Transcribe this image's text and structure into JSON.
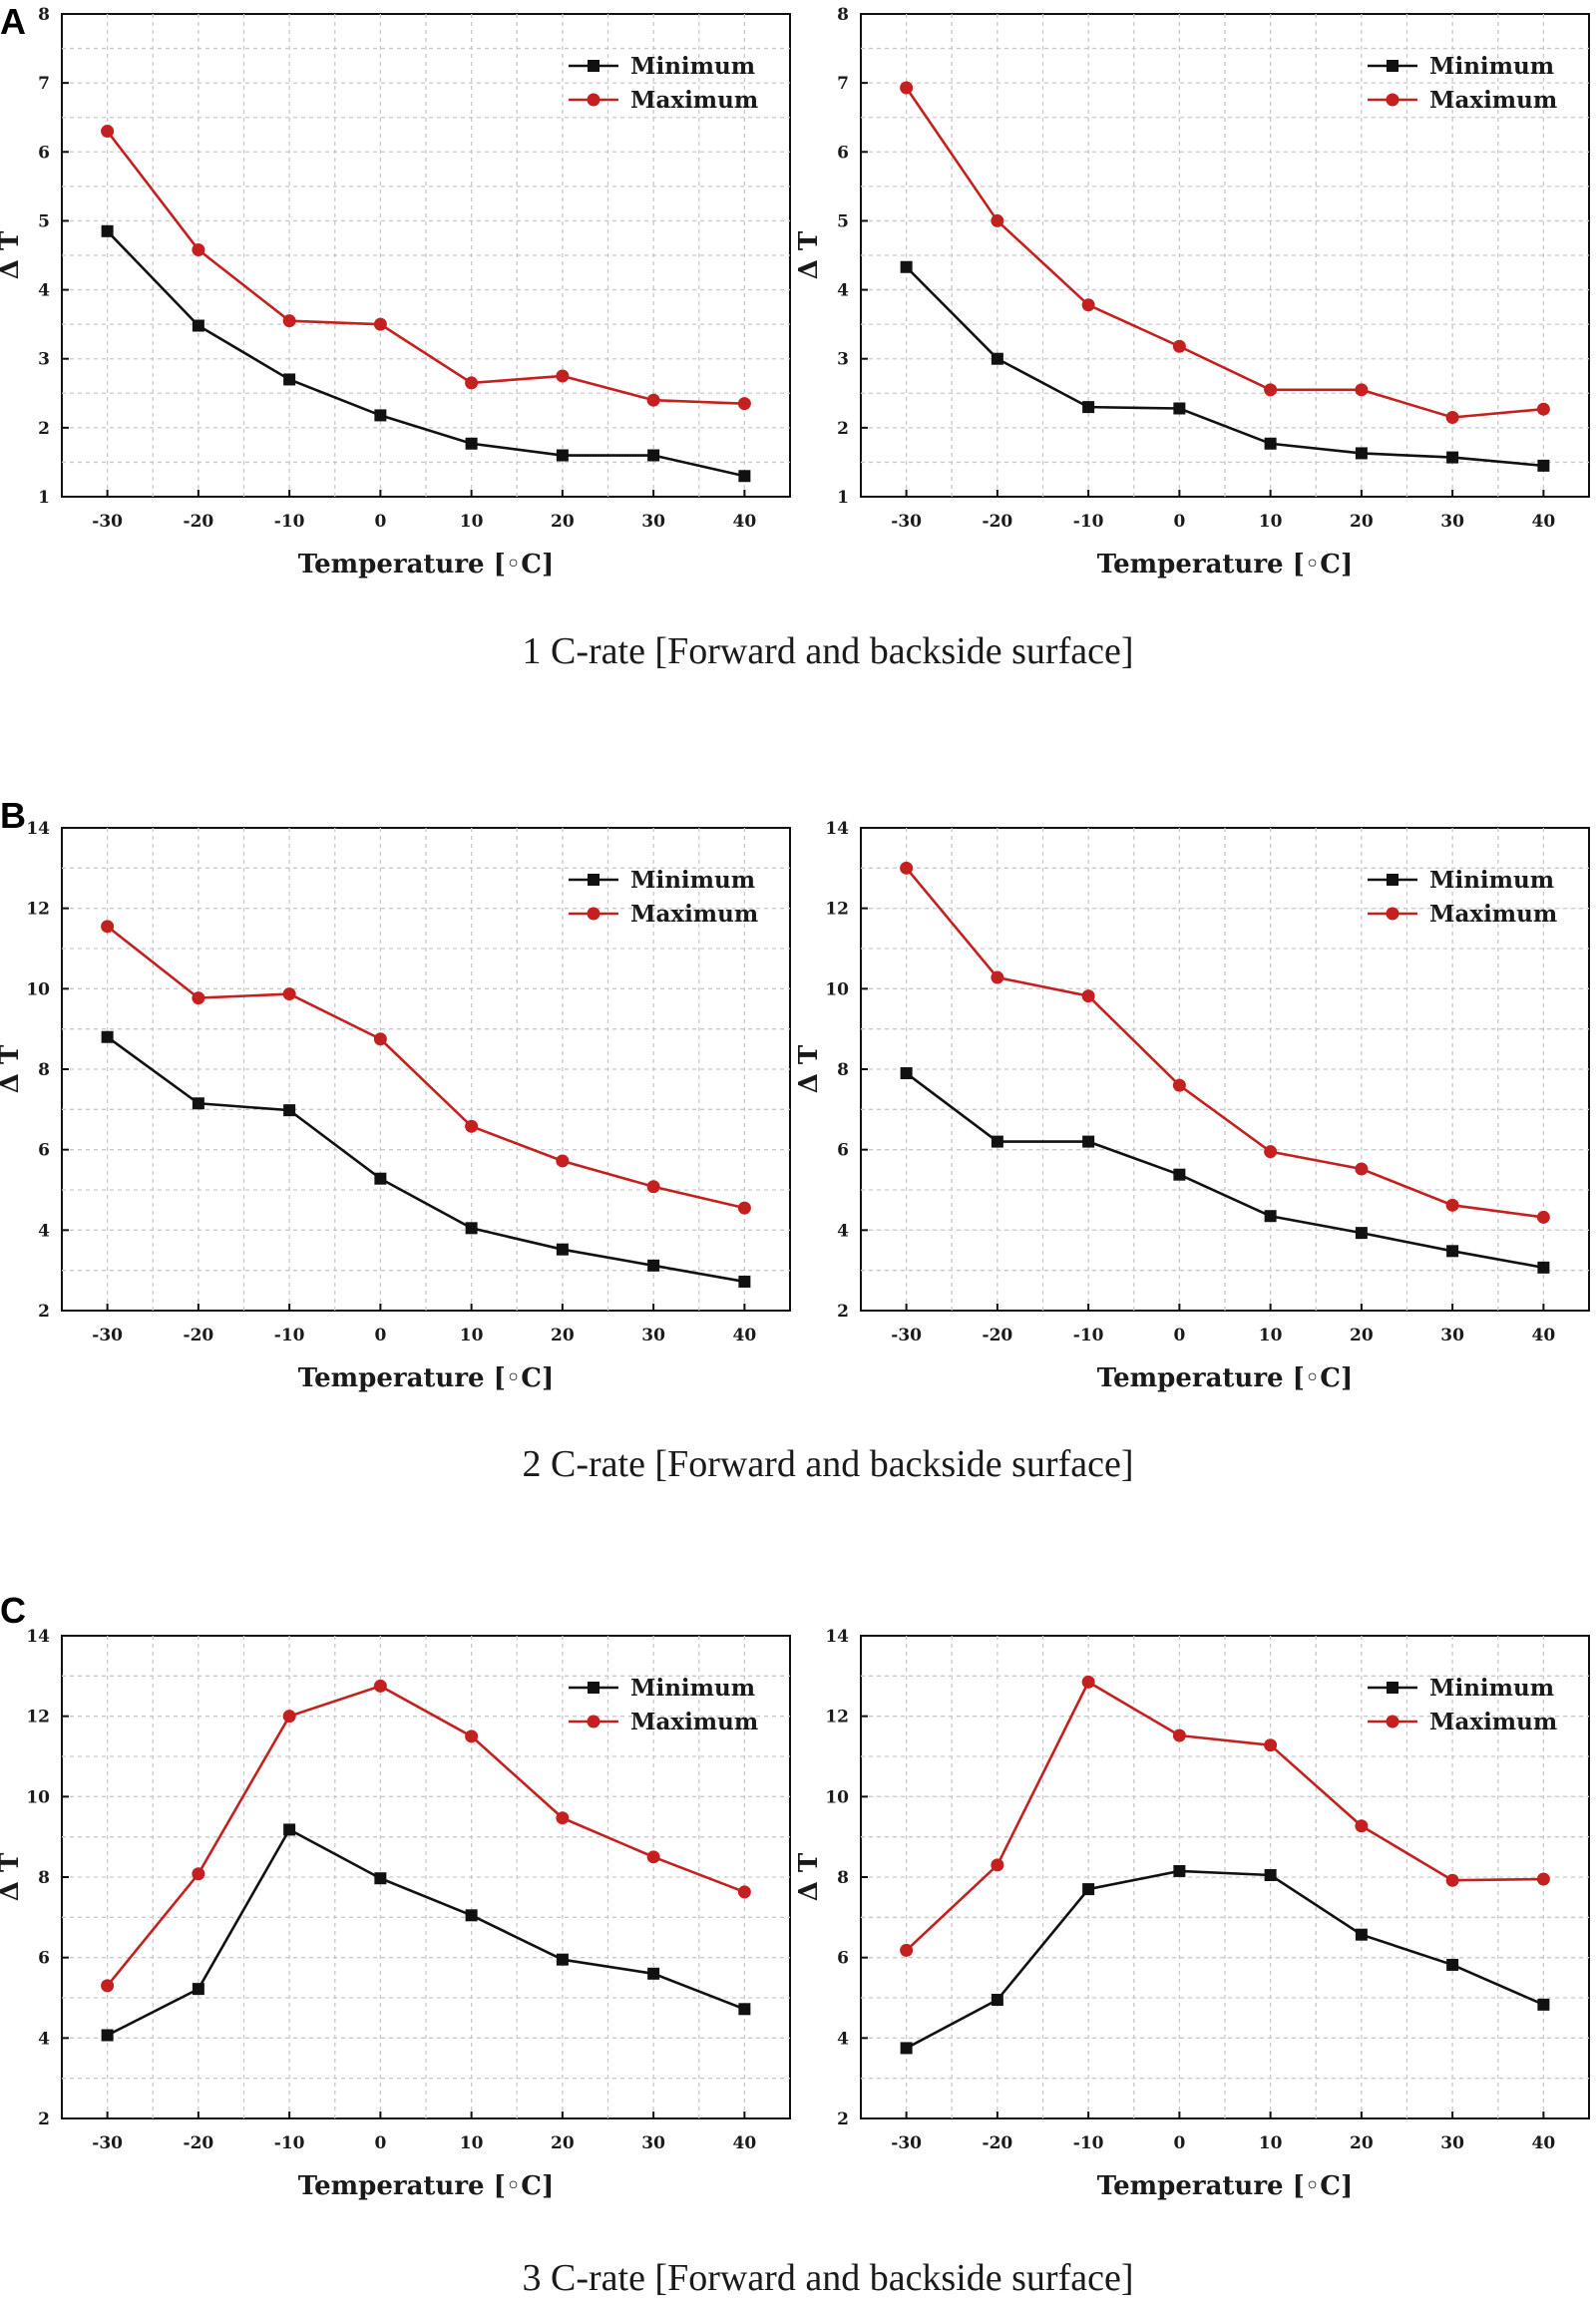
{
  "colors": {
    "minimum": "#111111",
    "maximum": "#c42020"
  },
  "panels": [
    {
      "letter": "A",
      "caption": "1 C-rate [Forward and backside surface]"
    },
    {
      "letter": "B",
      "caption": "2 C-rate [Forward and backside surface]"
    },
    {
      "letter": "C",
      "caption": "3 C-rate [Forward and backside surface]"
    }
  ],
  "chart_data": [
    {
      "type": "line",
      "panel": "A",
      "side": "left",
      "xlabel": "Temperature [◦C]",
      "ylabel": "Δ T",
      "x": [
        -30,
        -20,
        -10,
        0,
        10,
        20,
        30,
        40
      ],
      "xlim": [
        -35,
        45
      ],
      "ylim": [
        1,
        8
      ],
      "xticks": [
        "-30",
        "-20",
        "-10",
        "0",
        "10",
        "20",
        "30",
        "40"
      ],
      "yticks": [
        "1",
        "2",
        "3",
        "4",
        "5",
        "6",
        "7",
        "8"
      ],
      "series": [
        {
          "name": "Minimum",
          "marker": "square",
          "values": [
            4.85,
            3.48,
            2.7,
            2.18,
            1.77,
            1.6,
            1.6,
            1.3
          ]
        },
        {
          "name": "Maximum",
          "marker": "circle",
          "values": [
            6.3,
            4.58,
            3.55,
            3.5,
            2.65,
            2.75,
            2.4,
            2.35
          ]
        }
      ],
      "legend": "top-right"
    },
    {
      "type": "line",
      "panel": "A",
      "side": "right",
      "xlabel": "Temperature [◦C]",
      "ylabel": "Δ T",
      "x": [
        -30,
        -20,
        -10,
        0,
        10,
        20,
        30,
        40
      ],
      "xlim": [
        -35,
        45
      ],
      "ylim": [
        1,
        8
      ],
      "xticks": [
        "-30",
        "-20",
        "-10",
        "0",
        "10",
        "20",
        "30",
        "40"
      ],
      "yticks": [
        "1",
        "2",
        "3",
        "4",
        "5",
        "6",
        "7",
        "8"
      ],
      "series": [
        {
          "name": "Minimum",
          "marker": "square",
          "values": [
            4.33,
            3.0,
            2.3,
            2.28,
            1.77,
            1.63,
            1.57,
            1.45
          ]
        },
        {
          "name": "Maximum",
          "marker": "circle",
          "values": [
            6.93,
            5.0,
            3.78,
            3.18,
            2.55,
            2.55,
            2.15,
            2.27
          ]
        }
      ],
      "legend": "top-right"
    },
    {
      "type": "line",
      "panel": "B",
      "side": "left",
      "xlabel": "Temperature [◦C]",
      "ylabel": "Δ T",
      "x": [
        -30,
        -20,
        -10,
        0,
        10,
        20,
        30,
        40
      ],
      "xlim": [
        -35,
        45
      ],
      "ylim": [
        2,
        14
      ],
      "xticks": [
        "-30",
        "-20",
        "-10",
        "0",
        "10",
        "20",
        "30",
        "40"
      ],
      "yticks": [
        "2",
        "4",
        "6",
        "8",
        "10",
        "12",
        "14"
      ],
      "series": [
        {
          "name": "Minimum",
          "marker": "square",
          "values": [
            8.8,
            7.15,
            6.98,
            5.28,
            4.05,
            3.52,
            3.12,
            2.72
          ]
        },
        {
          "name": "Maximum",
          "marker": "circle",
          "values": [
            11.55,
            9.77,
            9.87,
            8.75,
            6.58,
            5.72,
            5.08,
            4.55
          ]
        }
      ],
      "legend": "top-right"
    },
    {
      "type": "line",
      "panel": "B",
      "side": "right",
      "xlabel": "Temperature [◦C]",
      "ylabel": "Δ T",
      "x": [
        -30,
        -20,
        -10,
        0,
        10,
        20,
        30,
        40
      ],
      "xlim": [
        -35,
        45
      ],
      "ylim": [
        2,
        14
      ],
      "xticks": [
        "-30",
        "-20",
        "-10",
        "0",
        "10",
        "20",
        "30",
        "40"
      ],
      "yticks": [
        "2",
        "4",
        "6",
        "8",
        "10",
        "12",
        "14"
      ],
      "series": [
        {
          "name": "Minimum",
          "marker": "square",
          "values": [
            7.9,
            6.2,
            6.2,
            5.38,
            4.35,
            3.93,
            3.48,
            3.07
          ]
        },
        {
          "name": "Maximum",
          "marker": "circle",
          "values": [
            13.0,
            10.28,
            9.82,
            7.6,
            5.95,
            5.52,
            4.62,
            4.32
          ]
        }
      ],
      "legend": "top-right"
    },
    {
      "type": "line",
      "panel": "C",
      "side": "left",
      "xlabel": "Temperature [◦C]",
      "ylabel": "Δ T",
      "x": [
        -30,
        -20,
        -10,
        0,
        10,
        20,
        30,
        40
      ],
      "xlim": [
        -35,
        45
      ],
      "ylim": [
        2,
        14
      ],
      "xticks": [
        "-30",
        "-20",
        "-10",
        "0",
        "10",
        "20",
        "30",
        "40"
      ],
      "yticks": [
        "2",
        "4",
        "6",
        "8",
        "10",
        "12",
        "14"
      ],
      "series": [
        {
          "name": "Minimum",
          "marker": "square",
          "values": [
            4.07,
            5.22,
            9.18,
            7.97,
            7.05,
            5.95,
            5.6,
            4.72
          ]
        },
        {
          "name": "Maximum",
          "marker": "circle",
          "values": [
            5.3,
            8.08,
            12.0,
            12.75,
            11.5,
            9.47,
            8.5,
            7.63
          ]
        }
      ],
      "legend": "top-right"
    },
    {
      "type": "line",
      "panel": "C",
      "side": "right",
      "xlabel": "Temperature [◦C]",
      "ylabel": "Δ T",
      "x": [
        -30,
        -20,
        -10,
        0,
        10,
        20,
        30,
        40
      ],
      "xlim": [
        -35,
        45
      ],
      "ylim": [
        2,
        14
      ],
      "xticks": [
        "-30",
        "-20",
        "-10",
        "0",
        "10",
        "20",
        "30",
        "40"
      ],
      "yticks": [
        "2",
        "4",
        "6",
        "8",
        "10",
        "12",
        "14"
      ],
      "series": [
        {
          "name": "Minimum",
          "marker": "square",
          "values": [
            3.75,
            4.95,
            7.7,
            8.15,
            8.05,
            6.57,
            5.82,
            4.83
          ]
        },
        {
          "name": "Maximum",
          "marker": "circle",
          "values": [
            6.18,
            8.3,
            12.85,
            11.52,
            11.28,
            9.27,
            7.92,
            7.95
          ]
        }
      ],
      "legend": "top-right"
    }
  ]
}
